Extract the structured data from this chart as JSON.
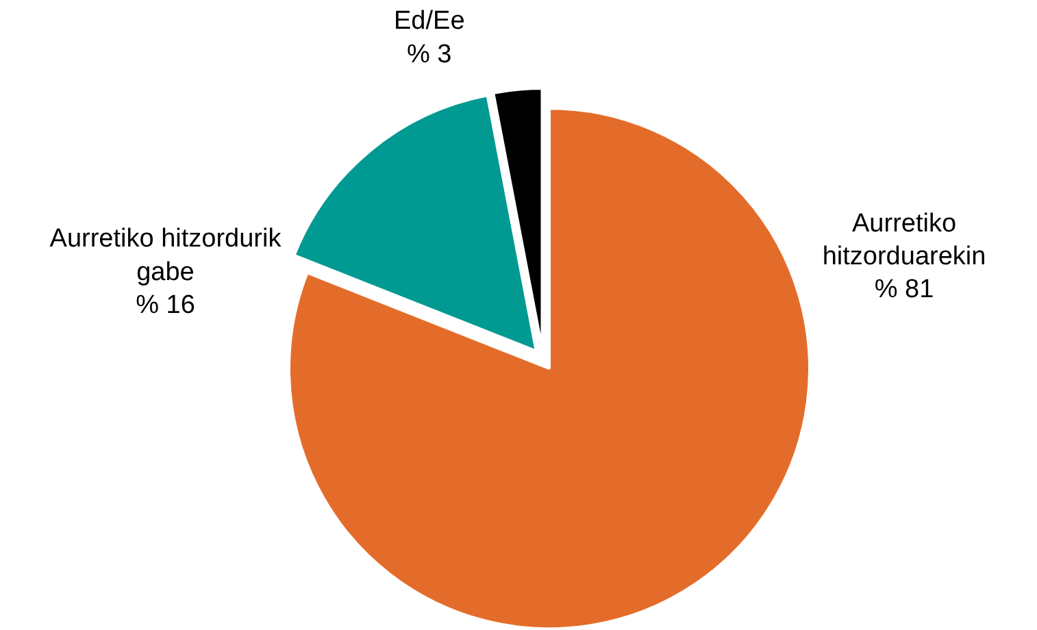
{
  "chart_data": {
    "type": "pie",
    "categories": [
      "Aurretiko hitzorduarekin",
      "Aurretiko hitzordurik gabe",
      "Ed/Ee"
    ],
    "values": [
      81,
      16,
      3
    ],
    "colors": [
      "#e46c2a",
      "#009a93",
      "#000000"
    ],
    "value_labels": [
      "% 81",
      "% 16",
      "% 3"
    ]
  }
}
